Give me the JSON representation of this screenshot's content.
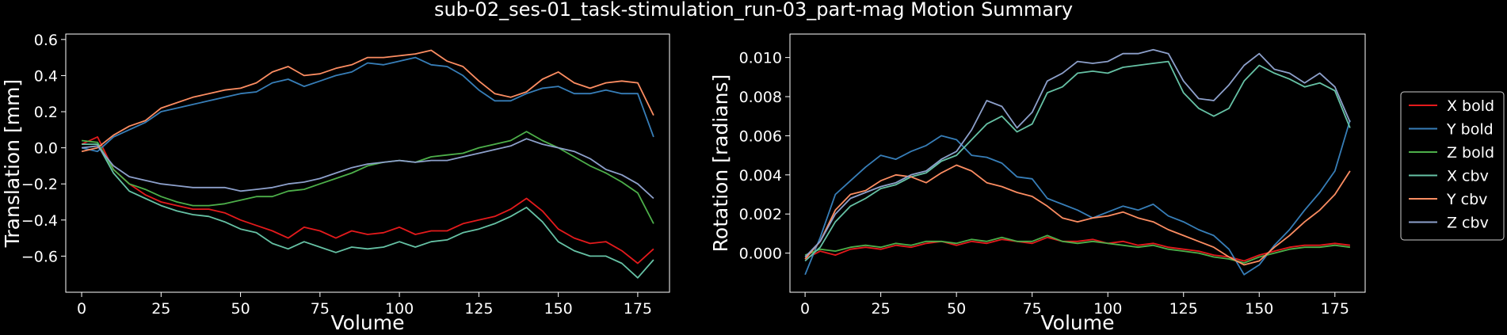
{
  "figure": {
    "title": "sub-02_ses-01_task-stimulation_run-03_part-mag Motion Summary",
    "background": "#000000"
  },
  "chart_data": [
    {
      "type": "line",
      "xlabel": "Volume",
      "ylabel": "Translation [mm]",
      "xlim": [
        -5,
        185
      ],
      "ylim": [
        -0.8,
        0.63
      ],
      "xticks": [
        0,
        25,
        50,
        75,
        100,
        125,
        150,
        175
      ],
      "yticks": [
        -0.6,
        -0.4,
        -0.2,
        0.0,
        0.2,
        0.4,
        0.6
      ],
      "ytick_labels": [
        "−0.6",
        "−0.4",
        "−0.2",
        "0.0",
        "0.2",
        "0.4",
        "0.6"
      ],
      "series": [
        {
          "name": "X bold",
          "color": "#e41a1c",
          "x": [
            0,
            5,
            10,
            15,
            20,
            25,
            30,
            35,
            40,
            45,
            50,
            55,
            60,
            65,
            70,
            75,
            80,
            85,
            90,
            95,
            100,
            105,
            110,
            115,
            120,
            125,
            130,
            135,
            140,
            145,
            150,
            155,
            160,
            165,
            170,
            175,
            180
          ],
          "y": [
            0.02,
            0.06,
            -0.12,
            -0.2,
            -0.26,
            -0.3,
            -0.32,
            -0.34,
            -0.34,
            -0.36,
            -0.4,
            -0.43,
            -0.46,
            -0.5,
            -0.44,
            -0.46,
            -0.5,
            -0.46,
            -0.48,
            -0.47,
            -0.44,
            -0.48,
            -0.46,
            -0.46,
            -0.42,
            -0.4,
            -0.38,
            -0.34,
            -0.28,
            -0.35,
            -0.45,
            -0.5,
            -0.53,
            -0.52,
            -0.57,
            -0.64,
            -0.56
          ]
        },
        {
          "name": "Y bold",
          "color": "#377eb8",
          "x": [
            0,
            5,
            10,
            15,
            20,
            25,
            30,
            35,
            40,
            45,
            50,
            55,
            60,
            65,
            70,
            75,
            80,
            85,
            90,
            95,
            100,
            105,
            110,
            115,
            120,
            125,
            130,
            135,
            140,
            145,
            150,
            155,
            160,
            165,
            170,
            175,
            180
          ],
          "y": [
            0.0,
            -0.02,
            0.06,
            0.1,
            0.14,
            0.2,
            0.22,
            0.24,
            0.26,
            0.28,
            0.3,
            0.31,
            0.36,
            0.38,
            0.34,
            0.37,
            0.4,
            0.42,
            0.47,
            0.46,
            0.48,
            0.5,
            0.46,
            0.45,
            0.4,
            0.32,
            0.26,
            0.26,
            0.3,
            0.33,
            0.34,
            0.3,
            0.3,
            0.32,
            0.3,
            0.3,
            0.06
          ]
        },
        {
          "name": "Z bold",
          "color": "#4daf4a",
          "x": [
            0,
            5,
            10,
            15,
            20,
            25,
            30,
            35,
            40,
            45,
            50,
            55,
            60,
            65,
            70,
            75,
            80,
            85,
            90,
            95,
            100,
            105,
            110,
            115,
            120,
            125,
            130,
            135,
            140,
            145,
            150,
            155,
            160,
            165,
            170,
            175,
            180
          ],
          "y": [
            0.04,
            0.03,
            -0.12,
            -0.2,
            -0.23,
            -0.27,
            -0.3,
            -0.32,
            -0.32,
            -0.31,
            -0.29,
            -0.27,
            -0.27,
            -0.24,
            -0.23,
            -0.2,
            -0.17,
            -0.14,
            -0.1,
            -0.08,
            -0.07,
            -0.08,
            -0.05,
            -0.04,
            -0.03,
            0.0,
            0.02,
            0.04,
            0.09,
            0.04,
            0.0,
            -0.05,
            -0.1,
            -0.14,
            -0.19,
            -0.25,
            -0.42
          ]
        },
        {
          "name": "X cbv",
          "color": "#66c2a5",
          "x": [
            0,
            5,
            10,
            15,
            20,
            25,
            30,
            35,
            40,
            45,
            50,
            55,
            60,
            65,
            70,
            75,
            80,
            85,
            90,
            95,
            100,
            105,
            110,
            115,
            120,
            125,
            130,
            135,
            140,
            145,
            150,
            155,
            160,
            165,
            170,
            175,
            180
          ],
          "y": [
            0.02,
            0.02,
            -0.14,
            -0.24,
            -0.28,
            -0.32,
            -0.35,
            -0.37,
            -0.38,
            -0.41,
            -0.45,
            -0.47,
            -0.53,
            -0.56,
            -0.52,
            -0.55,
            -0.58,
            -0.55,
            -0.56,
            -0.55,
            -0.52,
            -0.55,
            -0.52,
            -0.51,
            -0.47,
            -0.45,
            -0.42,
            -0.38,
            -0.33,
            -0.41,
            -0.52,
            -0.57,
            -0.6,
            -0.6,
            -0.64,
            -0.72,
            -0.62
          ]
        },
        {
          "name": "Y cbv",
          "color": "#fc8d62",
          "x": [
            0,
            5,
            10,
            15,
            20,
            25,
            30,
            35,
            40,
            45,
            50,
            55,
            60,
            65,
            70,
            75,
            80,
            85,
            90,
            95,
            100,
            105,
            110,
            115,
            120,
            125,
            130,
            135,
            140,
            145,
            150,
            155,
            160,
            165,
            170,
            175,
            180
          ],
          "y": [
            -0.02,
            0.0,
            0.07,
            0.12,
            0.15,
            0.22,
            0.25,
            0.28,
            0.3,
            0.32,
            0.33,
            0.36,
            0.42,
            0.45,
            0.4,
            0.41,
            0.44,
            0.46,
            0.5,
            0.5,
            0.51,
            0.52,
            0.54,
            0.48,
            0.45,
            0.37,
            0.3,
            0.28,
            0.31,
            0.38,
            0.42,
            0.36,
            0.33,
            0.36,
            0.37,
            0.36,
            0.18
          ]
        },
        {
          "name": "Z cbv",
          "color": "#8da0cb",
          "x": [
            0,
            5,
            10,
            15,
            20,
            25,
            30,
            35,
            40,
            45,
            50,
            55,
            60,
            65,
            70,
            75,
            80,
            85,
            90,
            95,
            100,
            105,
            110,
            115,
            120,
            125,
            130,
            135,
            140,
            145,
            150,
            155,
            160,
            165,
            170,
            175,
            180
          ],
          "y": [
            0.0,
            0.01,
            -0.1,
            -0.16,
            -0.18,
            -0.2,
            -0.21,
            -0.22,
            -0.22,
            -0.22,
            -0.24,
            -0.23,
            -0.22,
            -0.2,
            -0.19,
            -0.17,
            -0.14,
            -0.11,
            -0.09,
            -0.08,
            -0.07,
            -0.08,
            -0.07,
            -0.07,
            -0.05,
            -0.03,
            -0.01,
            0.01,
            0.05,
            0.02,
            0.0,
            -0.02,
            -0.06,
            -0.12,
            -0.15,
            -0.2,
            -0.28
          ]
        }
      ]
    },
    {
      "type": "line",
      "xlabel": "Volume",
      "ylabel": "Rotation [radians]",
      "xlim": [
        -5,
        185
      ],
      "ylim": [
        -0.002,
        0.0112
      ],
      "xticks": [
        0,
        25,
        50,
        75,
        100,
        125,
        150,
        175
      ],
      "yticks": [
        0.0,
        0.002,
        0.004,
        0.006,
        0.008,
        0.01
      ],
      "ytick_labels": [
        "0.000",
        "0.002",
        "0.004",
        "0.006",
        "0.008",
        "0.010"
      ],
      "series": [
        {
          "name": "X bold",
          "color": "#e41a1c",
          "x": [
            0,
            5,
            10,
            15,
            20,
            25,
            30,
            35,
            40,
            45,
            50,
            55,
            60,
            65,
            70,
            75,
            80,
            85,
            90,
            95,
            100,
            105,
            110,
            115,
            120,
            125,
            130,
            135,
            140,
            145,
            150,
            155,
            160,
            165,
            170,
            175,
            180
          ],
          "y": [
            -0.0003,
            0.0001,
            -0.0001,
            0.0002,
            0.0003,
            0.0002,
            0.0004,
            0.0003,
            0.0005,
            0.0006,
            0.0004,
            0.0006,
            0.0005,
            0.0007,
            0.0006,
            0.0005,
            0.0008,
            0.0006,
            0.0006,
            0.0007,
            0.0005,
            0.0006,
            0.0004,
            0.0005,
            0.0003,
            0.0002,
            0.0001,
            -0.0001,
            -0.0002,
            -0.0004,
            -0.0001,
            0.0001,
            0.0003,
            0.0004,
            0.0004,
            0.0005,
            0.0004
          ]
        },
        {
          "name": "Y bold",
          "color": "#377eb8",
          "x": [
            0,
            5,
            10,
            15,
            20,
            25,
            30,
            35,
            40,
            45,
            50,
            55,
            60,
            65,
            70,
            75,
            80,
            85,
            90,
            95,
            100,
            105,
            110,
            115,
            120,
            125,
            130,
            135,
            140,
            145,
            150,
            155,
            160,
            165,
            170,
            175,
            180
          ],
          "y": [
            -0.0011,
            0.0008,
            0.003,
            0.0037,
            0.0044,
            0.005,
            0.0048,
            0.0052,
            0.0055,
            0.006,
            0.0058,
            0.005,
            0.0049,
            0.0046,
            0.0039,
            0.0038,
            0.0028,
            0.0025,
            0.0022,
            0.0018,
            0.0021,
            0.0024,
            0.0022,
            0.0025,
            0.0019,
            0.0016,
            0.0012,
            0.0009,
            0.0002,
            -0.0011,
            -0.0006,
            0.0004,
            0.0012,
            0.0022,
            0.0031,
            0.0042,
            0.0068
          ]
        },
        {
          "name": "Z bold",
          "color": "#4daf4a",
          "x": [
            0,
            5,
            10,
            15,
            20,
            25,
            30,
            35,
            40,
            45,
            50,
            55,
            60,
            65,
            70,
            75,
            80,
            85,
            90,
            95,
            100,
            105,
            110,
            115,
            120,
            125,
            130,
            135,
            140,
            145,
            150,
            155,
            160,
            165,
            170,
            175,
            180
          ],
          "y": [
            -0.0001,
            0.0002,
            0.0001,
            0.0003,
            0.0004,
            0.0003,
            0.0005,
            0.0004,
            0.0006,
            0.0006,
            0.0005,
            0.0007,
            0.0006,
            0.0008,
            0.0006,
            0.0006,
            0.0009,
            0.0006,
            0.0005,
            0.0006,
            0.0005,
            0.0004,
            0.0003,
            0.0004,
            0.0002,
            0.0001,
            0.0,
            -0.0002,
            -0.0003,
            -0.0005,
            -0.0002,
            0.0,
            0.0002,
            0.0003,
            0.0003,
            0.0004,
            0.0003
          ]
        },
        {
          "name": "X cbv",
          "color": "#66c2a5",
          "x": [
            0,
            5,
            10,
            15,
            20,
            25,
            30,
            35,
            40,
            45,
            50,
            55,
            60,
            65,
            70,
            75,
            80,
            85,
            90,
            95,
            100,
            105,
            110,
            115,
            120,
            125,
            130,
            135,
            140,
            145,
            150,
            155,
            160,
            165,
            170,
            175,
            180
          ],
          "y": [
            -0.0004,
            0.0003,
            0.0016,
            0.0024,
            0.0028,
            0.0033,
            0.0035,
            0.0039,
            0.0041,
            0.0047,
            0.005,
            0.0058,
            0.0066,
            0.007,
            0.0062,
            0.0066,
            0.0082,
            0.0085,
            0.0092,
            0.0093,
            0.0092,
            0.0095,
            0.0096,
            0.0097,
            0.0098,
            0.0082,
            0.0074,
            0.007,
            0.0074,
            0.0088,
            0.0096,
            0.0092,
            0.0089,
            0.0085,
            0.0087,
            0.0083,
            0.0064
          ]
        },
        {
          "name": "Y cbv",
          "color": "#fc8d62",
          "x": [
            0,
            5,
            10,
            15,
            20,
            25,
            30,
            35,
            40,
            45,
            50,
            55,
            60,
            65,
            70,
            75,
            80,
            85,
            90,
            95,
            100,
            105,
            110,
            115,
            120,
            125,
            130,
            135,
            140,
            145,
            150,
            155,
            160,
            165,
            170,
            175,
            180
          ],
          "y": [
            -0.0003,
            0.0006,
            0.0022,
            0.003,
            0.0032,
            0.0037,
            0.004,
            0.0039,
            0.0036,
            0.0041,
            0.0045,
            0.0042,
            0.0036,
            0.0034,
            0.0031,
            0.0029,
            0.0024,
            0.0018,
            0.0016,
            0.0018,
            0.0019,
            0.0021,
            0.0018,
            0.0016,
            0.0012,
            0.0009,
            0.0006,
            0.0003,
            -0.0002,
            -0.0006,
            -0.0004,
            0.0003,
            0.0009,
            0.0016,
            0.0022,
            0.003,
            0.0042
          ]
        },
        {
          "name": "Z cbv",
          "color": "#8da0cb",
          "x": [
            0,
            5,
            10,
            15,
            20,
            25,
            30,
            35,
            40,
            45,
            50,
            55,
            60,
            65,
            70,
            75,
            80,
            85,
            90,
            95,
            100,
            105,
            110,
            115,
            120,
            125,
            130,
            135,
            140,
            145,
            150,
            155,
            160,
            165,
            170,
            175,
            180
          ],
          "y": [
            -0.0002,
            0.0006,
            0.002,
            0.0028,
            0.0031,
            0.0034,
            0.0036,
            0.004,
            0.0042,
            0.0048,
            0.0052,
            0.0063,
            0.0078,
            0.0075,
            0.0064,
            0.0072,
            0.0088,
            0.0092,
            0.0098,
            0.0097,
            0.0098,
            0.0102,
            0.0102,
            0.0104,
            0.0102,
            0.0088,
            0.0079,
            0.0078,
            0.0086,
            0.0096,
            0.0102,
            0.0094,
            0.0092,
            0.0087,
            0.0092,
            0.0085,
            0.0067
          ]
        }
      ]
    }
  ]
}
